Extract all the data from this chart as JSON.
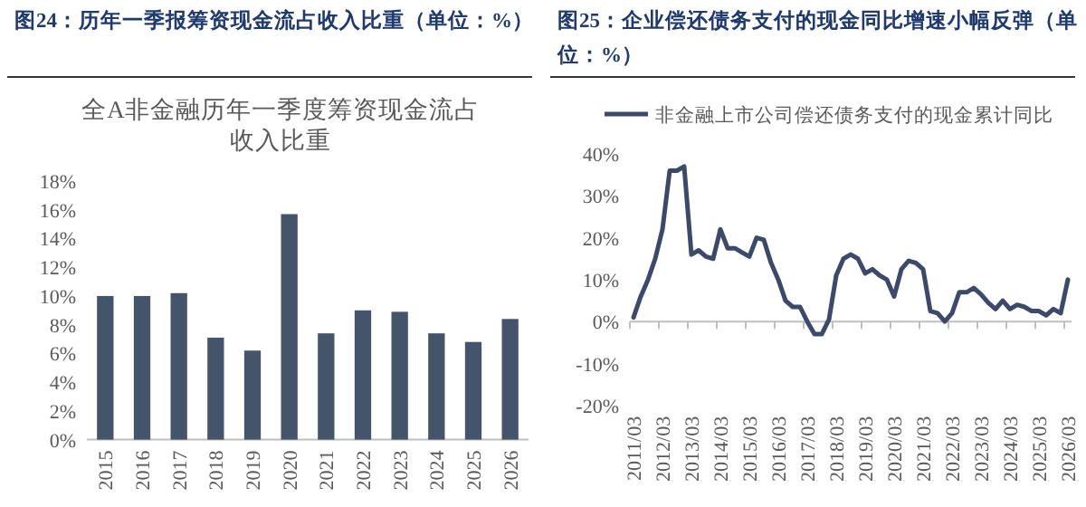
{
  "chart_data": [
    {
      "type": "bar",
      "title": "图24：历年一季报筹资现金流占收入比重（单位：%）",
      "subtitle": "全A非金融历年一季度筹资现金流占收入比重",
      "categories": [
        "2015",
        "2016",
        "2017",
        "2018",
        "2019",
        "2020",
        "2021",
        "2022",
        "2023",
        "2024",
        "2025",
        "2026"
      ],
      "values": [
        10.0,
        10.0,
        10.2,
        7.1,
        6.2,
        15.7,
        7.4,
        9.0,
        8.9,
        7.4,
        6.8,
        8.4
      ],
      "color": "#44546a",
      "ylim": [
        0,
        18
      ],
      "yticks": [
        {
          "value": 0,
          "label": "0%"
        },
        {
          "value": 2,
          "label": "2%"
        },
        {
          "value": 4,
          "label": "4%"
        },
        {
          "value": 6,
          "label": "6%"
        },
        {
          "value": 8,
          "label": "8%"
        },
        {
          "value": 10,
          "label": "10%"
        },
        {
          "value": 12,
          "label": "12%"
        },
        {
          "value": 14,
          "label": "14%"
        },
        {
          "value": 16,
          "label": "16%"
        },
        {
          "value": 18,
          "label": "18%"
        }
      ],
      "grid": false,
      "legend": false
    },
    {
      "type": "line",
      "title": "图25：企业偿还债务支付的现金同比增速小幅反弹（单位：%）",
      "categories": [
        "2011/03",
        null,
        null,
        null,
        "2012/03",
        null,
        null,
        null,
        "2013/03",
        null,
        null,
        null,
        "2014/03",
        null,
        null,
        null,
        "2015/03",
        null,
        null,
        null,
        "2016/03",
        null,
        null,
        null,
        "2017/03",
        null,
        null,
        null,
        "2018/03",
        null,
        null,
        null,
        "2019/03",
        null,
        null,
        null,
        "2020/03",
        null,
        null,
        null,
        "2021/03",
        null,
        null,
        null,
        "2022/03",
        null,
        null,
        null,
        "2023/03",
        null,
        null,
        null,
        "2024/03",
        null,
        null,
        null,
        "2025/03",
        null,
        null,
        null,
        "2026/03"
      ],
      "series": [
        {
          "name": "非金融上市公司偿还债务支付的现金累计同比",
          "color": "#3b4a6b",
          "values": [
            1,
            6,
            10,
            15,
            22,
            36,
            36,
            37,
            16,
            17,
            15.5,
            15,
            22,
            17.5,
            17.5,
            16.5,
            15.5,
            20,
            19.5,
            14,
            10,
            5,
            3.5,
            3.5,
            0,
            -3,
            -3,
            0.5,
            11,
            15,
            16,
            15,
            11.5,
            12.5,
            11,
            10,
            6,
            12.5,
            14.5,
            14,
            12.5,
            2.5,
            2,
            0,
            2,
            7,
            7,
            8,
            6.5,
            4.5,
            3,
            5,
            3,
            4,
            3.5,
            2.5,
            2.5,
            1.5,
            3,
            2,
            10
          ]
        }
      ],
      "ylim": [
        -20,
        40
      ],
      "yticks": [
        {
          "value": -20,
          "label": "-20%"
        },
        {
          "value": -10,
          "label": "-10%"
        },
        {
          "value": 0,
          "label": "0%"
        },
        {
          "value": 10,
          "label": "10%"
        },
        {
          "value": 20,
          "label": "20%"
        },
        {
          "value": 30,
          "label": "30%"
        },
        {
          "value": 40,
          "label": "40%"
        }
      ],
      "legend": "top",
      "line_style": "solid",
      "marker": "none"
    }
  ]
}
